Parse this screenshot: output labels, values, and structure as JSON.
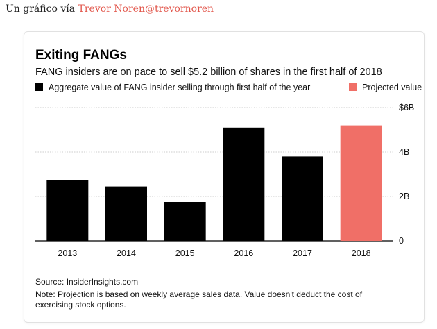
{
  "caption": {
    "prefix": "Un gráfico vía",
    "author_link": "Trevor Noren",
    "handle_link": "@trevornoren",
    "link_color": "#e2574c"
  },
  "chart_data": {
    "type": "bar",
    "title": "Exiting FANGs",
    "subtitle": "FANG insiders are on pace to sell $5.2 billion of shares in the first half of 2018",
    "categories": [
      "2013",
      "2014",
      "2015",
      "2016",
      "2017",
      "2018"
    ],
    "values": [
      2.75,
      2.45,
      1.75,
      5.1,
      3.8,
      5.2
    ],
    "value_unit": "billion USD",
    "series_colors": [
      "#000000",
      "#000000",
      "#000000",
      "#000000",
      "#000000",
      "#f06f67"
    ],
    "ylim": [
      0,
      6
    ],
    "yticks": [
      {
        "value": 0,
        "label": "0"
      },
      {
        "value": 2,
        "label": "2B"
      },
      {
        "value": 4,
        "label": "4B"
      },
      {
        "value": 6,
        "label": "$6B"
      }
    ],
    "ytick_position": "right",
    "grid": true,
    "legend_position": "top",
    "legend": [
      {
        "label": "Aggregate value of FANG insider selling through first half of the year",
        "color": "#000000"
      },
      {
        "label": "Projected value",
        "color": "#f06f67"
      }
    ],
    "source": "Source: InsiderInsights.com",
    "note_line1": "Note: Projection is based on weekly average sales data. Value doesn't deduct the cost of",
    "note_line2": "exercising stock options."
  }
}
